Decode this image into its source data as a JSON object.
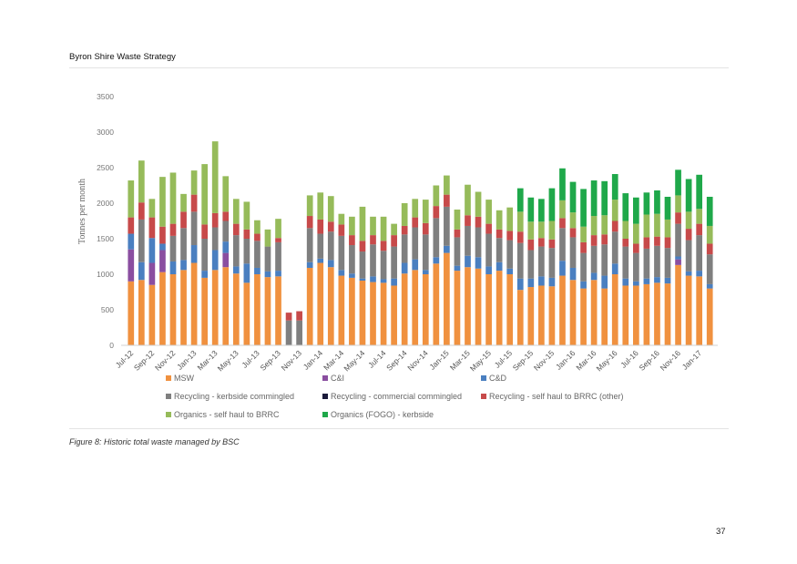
{
  "header": {
    "title": "Byron Shire Waste Strategy"
  },
  "caption": "Figure 8: Historic total waste managed by BSC",
  "page_number": "37",
  "chart_data": {
    "type": "bar",
    "stacked": true,
    "title": "",
    "xlabel": "",
    "ylabel": "Tonnes per month",
    "ylim": [
      0,
      3500
    ],
    "yticks": [
      "0",
      "500",
      "1000",
      "1500",
      "2000",
      "2500",
      "3000",
      "3500"
    ],
    "grid": false,
    "legend_position": "bottom",
    "categories": [
      "Jul-12",
      "Aug-12",
      "Sep-12",
      "Oct-12",
      "Nov-12",
      "Dec-12",
      "Jan-13",
      "Feb-13",
      "Mar-13",
      "Apr-13",
      "May-13",
      "Jun-13",
      "Jul-13",
      "Aug-13",
      "Sep-13",
      "Oct-13",
      "Nov-13",
      "Dec-13",
      "Jan-14",
      "Feb-14",
      "Mar-14",
      "Apr-14",
      "May-14",
      "Jun-14",
      "Jul-14",
      "Aug-14",
      "Sep-14",
      "Oct-14",
      "Nov-14",
      "Dec-14",
      "Jan-15",
      "Feb-15",
      "Mar-15",
      "Apr-15",
      "May-15",
      "Jun-15",
      "Jul-15",
      "Aug-15",
      "Sep-15",
      "Oct-15",
      "Nov-15",
      "Dec-15",
      "Jan-16",
      "Feb-16",
      "Mar-16",
      "Apr-16",
      "May-16",
      "Jun-16",
      "Jul-16",
      "Aug-16",
      "Sep-16",
      "Oct-16",
      "Nov-16",
      "Dec-16",
      "Jan-17",
      "Feb-17"
    ],
    "xtick_labels": [
      "Jul-12",
      "Sep-12",
      "Nov-12",
      "Jan-13",
      "Mar-13",
      "May-13",
      "Jul-13",
      "Sep-13",
      "Nov-13",
      "Jan-14",
      "Mar-14",
      "May-14",
      "Jul-14",
      "Sep-14",
      "Nov-14",
      "Jan-15",
      "Mar-15",
      "May-15",
      "Jul-15",
      "Sep-15",
      "Nov-15",
      "Jan-16",
      "Mar-16",
      "May-16",
      "Jul-16",
      "Sep-16",
      "Nov-16",
      "Jan-17"
    ],
    "series": [
      {
        "name": "MSW",
        "color": "#f0913f",
        "values": [
          900,
          920,
          850,
          1030,
          1000,
          1060,
          1160,
          950,
          1060,
          1100,
          1010,
          880,
          1000,
          960,
          970,
          0,
          0,
          1090,
          1160,
          1100,
          980,
          950,
          910,
          890,
          880,
          840,
          1010,
          1060,
          1000,
          1150,
          1300,
          1050,
          1100,
          1080,
          1000,
          1050,
          1000,
          780,
          820,
          840,
          830,
          980,
          920,
          800,
          920,
          800,
          1000,
          840,
          840,
          860,
          880,
          870,
          1130,
          980,
          970,
          800
        ]
      },
      {
        "name": "C&I",
        "color": "#8a4ea0",
        "values": [
          450,
          0,
          310,
          310,
          0,
          0,
          0,
          0,
          0,
          200,
          0,
          0,
          0,
          0,
          0,
          0,
          0,
          0,
          0,
          0,
          0,
          0,
          0,
          0,
          0,
          0,
          0,
          0,
          0,
          0,
          0,
          0,
          0,
          0,
          0,
          0,
          0,
          0,
          0,
          0,
          0,
          0,
          0,
          0,
          0,
          0,
          0,
          0,
          0,
          0,
          0,
          0,
          80,
          0,
          0,
          0
        ]
      },
      {
        "name": "C&D",
        "color": "#4a7fc0",
        "values": [
          220,
          250,
          350,
          90,
          180,
          140,
          250,
          100,
          280,
          160,
          100,
          270,
          90,
          80,
          80,
          0,
          0,
          80,
          60,
          100,
          80,
          60,
          30,
          80,
          50,
          100,
          150,
          150,
          60,
          90,
          100,
          70,
          160,
          160,
          110,
          120,
          80,
          160,
          120,
          130,
          120,
          210,
          170,
          100,
          100,
          180,
          150,
          100,
          60,
          80,
          80,
          80,
          40,
          60,
          80,
          60
        ]
      },
      {
        "name": "Recycling - kerbside commingled",
        "color": "#7f7f7f",
        "values": [
          0,
          600,
          0,
          0,
          360,
          450,
          470,
          450,
          320,
          290,
          440,
          350,
          380,
          350,
          400,
          350,
          350,
          480,
          350,
          400,
          480,
          400,
          380,
          450,
          400,
          450,
          400,
          450,
          500,
          550,
          550,
          400,
          420,
          420,
          460,
          340,
          400,
          500,
          400,
          420,
          420,
          460,
          430,
          400,
          380,
          440,
          450,
          450,
          400,
          420,
          440,
          420,
          460,
          440,
          500,
          420
        ]
      },
      {
        "name": "Recycling - commercial commingled",
        "color": "#1a1a3a",
        "values": [
          0,
          0,
          0,
          0,
          0,
          0,
          0,
          0,
          0,
          0,
          0,
          0,
          0,
          0,
          0,
          0,
          0,
          0,
          0,
          0,
          0,
          0,
          0,
          0,
          0,
          0,
          0,
          0,
          0,
          0,
          0,
          0,
          0,
          0,
          0,
          0,
          0,
          0,
          0,
          0,
          0,
          0,
          0,
          0,
          0,
          0,
          0,
          0,
          0,
          0,
          0,
          0,
          0,
          0,
          0,
          0
        ]
      },
      {
        "name": "Recycling - self haul to BRRC (other)",
        "color": "#c74a4a",
        "values": [
          230,
          240,
          290,
          240,
          170,
          230,
          240,
          200,
          200,
          130,
          160,
          130,
          100,
          0,
          60,
          110,
          130,
          170,
          200,
          140,
          160,
          140,
          150,
          130,
          140,
          160,
          120,
          140,
          160,
          170,
          170,
          110,
          150,
          150,
          140,
          120,
          130,
          160,
          150,
          120,
          120,
          140,
          130,
          150,
          150,
          140,
          150,
          110,
          130,
          160,
          130,
          150,
          160,
          160,
          160,
          150
        ]
      },
      {
        "name": "Organics - self haul to BRRC",
        "color": "#96bb5a",
        "values": [
          520,
          590,
          260,
          700,
          720,
          250,
          340,
          850,
          1010,
          500,
          350,
          390,
          190,
          240,
          270,
          0,
          0,
          290,
          380,
          360,
          150,
          260,
          480,
          260,
          340,
          160,
          320,
          260,
          330,
          290,
          270,
          280,
          430,
          350,
          340,
          270,
          330,
          280,
          250,
          230,
          260,
          250,
          220,
          220,
          270,
          270,
          300,
          250,
          280,
          320,
          320,
          250,
          240,
          240,
          210,
          250
        ]
      },
      {
        "name": "Organics (FOGO) - kerbside",
        "color": "#1fa84a",
        "values": [
          0,
          0,
          0,
          0,
          0,
          0,
          0,
          0,
          0,
          0,
          0,
          0,
          0,
          0,
          0,
          0,
          0,
          0,
          0,
          0,
          0,
          0,
          0,
          0,
          0,
          0,
          0,
          0,
          0,
          0,
          0,
          0,
          0,
          0,
          0,
          0,
          0,
          330,
          340,
          320,
          460,
          450,
          430,
          530,
          500,
          480,
          360,
          390,
          370,
          310,
          330,
          320,
          360,
          460,
          480,
          410
        ]
      }
    ]
  }
}
